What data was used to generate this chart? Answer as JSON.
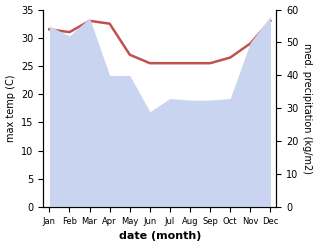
{
  "months": [
    "Jan",
    "Feb",
    "Mar",
    "Apr",
    "May",
    "Jun",
    "Jul",
    "Aug",
    "Sep",
    "Oct",
    "Nov",
    "Dec"
  ],
  "temperature": [
    31.5,
    31.0,
    33.0,
    32.5,
    27.0,
    25.5,
    25.5,
    25.5,
    25.5,
    26.5,
    29.0,
    33.0
  ],
  "precipitation_kg": [
    55.0,
    52.0,
    57.5,
    40.0,
    40.0,
    29.0,
    33.0,
    32.5,
    32.5,
    33.0,
    50.0,
    58.0
  ],
  "temp_color": "#c0514d",
  "precip_fill_color": "#c8d4f0",
  "precip_edge_color": "#c8d4f0",
  "background_color": "#ffffff",
  "ylabel_left": "max temp (C)",
  "ylabel_right": "med. precipitation (kg/m2)",
  "xlabel": "date (month)",
  "ylim_left": [
    0,
    35
  ],
  "ylim_right": [
    0,
    60
  ],
  "left_yticks": [
    0,
    5,
    10,
    15,
    20,
    25,
    30,
    35
  ],
  "right_yticks": [
    0,
    10,
    20,
    30,
    40,
    50,
    60
  ]
}
